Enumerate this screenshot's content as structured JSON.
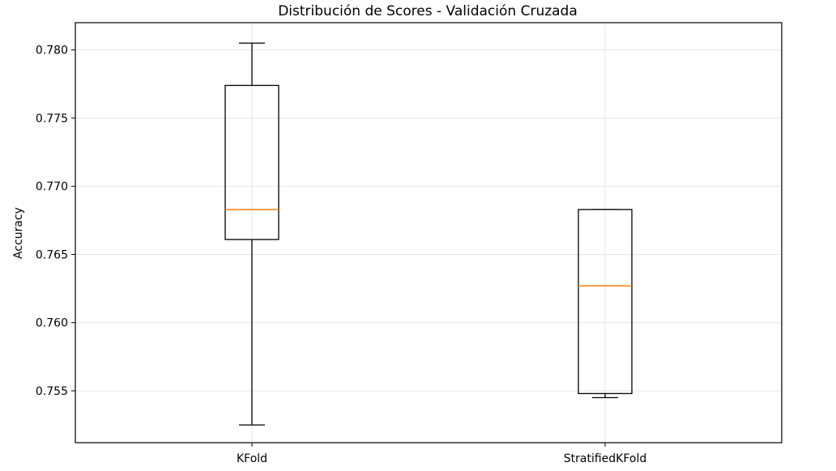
{
  "chart_data": {
    "type": "box",
    "title": "Distribución de Scores - Validación Cruzada",
    "xlabel": "",
    "ylabel": "Accuracy",
    "ylim": [
      0.7512,
      0.782
    ],
    "yticks": [
      0.755,
      0.76,
      0.765,
      0.77,
      0.775,
      0.78
    ],
    "ytick_labels": [
      "0.755",
      "0.760",
      "0.765",
      "0.770",
      "0.775",
      "0.780"
    ],
    "grid": true,
    "categories": [
      "KFold",
      "StratifiedKFold"
    ],
    "boxes": [
      {
        "category": "KFold",
        "whisker_low": 0.7525,
        "q1": 0.7661,
        "median": 0.7683,
        "q3": 0.7774,
        "whisker_high": 0.7805
      },
      {
        "category": "StratifiedKFold",
        "whisker_low": 0.7545,
        "q1": 0.7548,
        "median": 0.7627,
        "q3": 0.7683,
        "whisker_high": 0.7683
      }
    ],
    "colors": {
      "box": "#000000",
      "median": "#ff7f0e",
      "grid": "#e6e6e6"
    }
  }
}
